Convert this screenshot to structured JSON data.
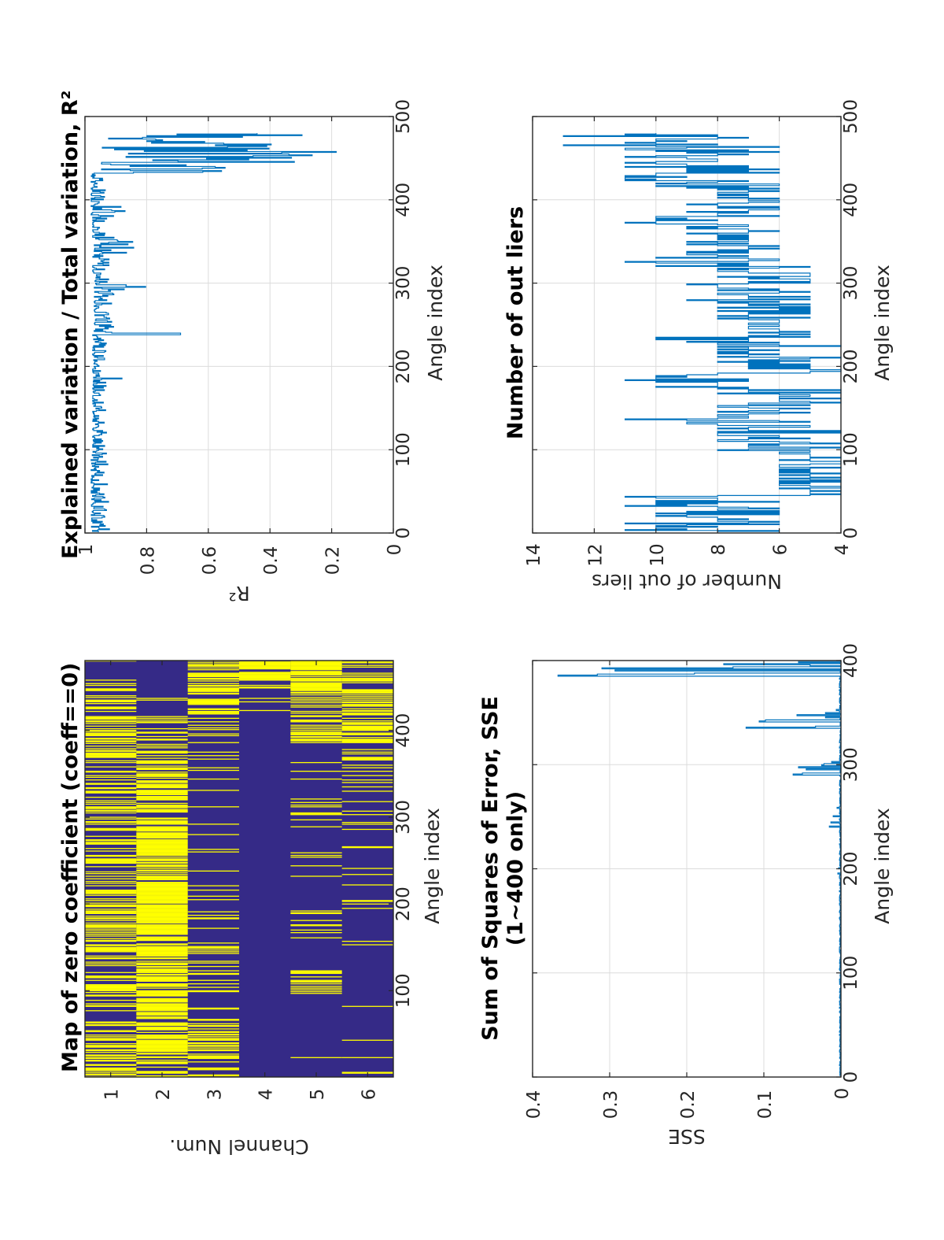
{
  "figure": {
    "orientation": "rotated-90-clockwise",
    "colors": {
      "line": "#0072bd",
      "heat_zero": "#ffff00",
      "heat_nonzero": "#352a87",
      "grid": "#dcdcdc",
      "axes": "#262626"
    }
  },
  "chart_data": [
    {
      "id": "zero-map",
      "type": "heatmap",
      "title": "Map of zero coefficient (coeff==0)",
      "xlabel": "Channel Num.",
      "ylabel": "Angle index",
      "xticks": [
        "1",
        "2",
        "3",
        "4",
        "5",
        "6"
      ],
      "yticks": [
        "100",
        "200",
        "300",
        "400"
      ],
      "ylim": [
        1,
        480
      ],
      "channels": [
        1,
        2,
        3,
        4,
        5,
        6
      ],
      "legend": "none",
      "value_colors": {
        "zero": "#ffff00",
        "nonzero": "#352a87"
      },
      "zero_density": [
        [
          0.42,
          0.55,
          0.3,
          0.5,
          0.45,
          0.4,
          0.35,
          0.3,
          0.45,
          0.4,
          0.3,
          0.55,
          0.6,
          0.45,
          0.1
        ],
        [
          0.55,
          0.85,
          0.7,
          0.8,
          0.75,
          0.85,
          0.9,
          0.8,
          0.85,
          0.7,
          0.75,
          0.55,
          0.35,
          0.05,
          0.0
        ],
        [
          0.55,
          0.6,
          0.15,
          0.3,
          0.35,
          0.15,
          0.1,
          0.05,
          0.15,
          0.1,
          0.08,
          0.1,
          0.25,
          0.7,
          0.7
        ],
        [
          0.0,
          0.0,
          0.0,
          0.0,
          0.0,
          0.0,
          0.0,
          0.0,
          0.0,
          0.0,
          0.0,
          0.0,
          0.0,
          0.05,
          0.7
        ],
        [
          0.03,
          0.0,
          0.0,
          0.45,
          0.03,
          0.18,
          0.0,
          0.12,
          0.08,
          0.22,
          0.08,
          0.15,
          0.55,
          0.45,
          0.92
        ],
        [
          0.1,
          0.05,
          0.03,
          0.0,
          0.06,
          0.0,
          0.12,
          0.08,
          0.1,
          0.1,
          0.15,
          0.25,
          0.5,
          0.6,
          0.45
        ]
      ]
    },
    {
      "id": "sse",
      "type": "line",
      "title": "Sum of Squares of Error, SSE",
      "subtitle": "(1~400 only)",
      "xlabel": "Angle index",
      "ylabel": "SSE",
      "xlim": [
        0,
        400
      ],
      "ylim": [
        0,
        0.4
      ],
      "xticks": [
        "0",
        "100",
        "200",
        "300",
        "400"
      ],
      "yticks": [
        "0",
        "0.1",
        "0.2",
        "0.3",
        "0.4"
      ],
      "grid": true,
      "series": [
        {
          "name": "SSE",
          "peaks": [
            {
              "x": 195,
              "y": 0.004
            },
            {
              "x": 200,
              "y": 0.003
            },
            {
              "x": 240,
              "y": 0.015
            },
            {
              "x": 244,
              "y": 0.013
            },
            {
              "x": 250,
              "y": 0.01
            },
            {
              "x": 258,
              "y": 0.005
            },
            {
              "x": 290,
              "y": 0.062
            },
            {
              "x": 291,
              "y": 0.05
            },
            {
              "x": 295,
              "y": 0.045
            },
            {
              "x": 297,
              "y": 0.055
            },
            {
              "x": 299,
              "y": 0.025
            },
            {
              "x": 300,
              "y": 0.022
            },
            {
              "x": 302,
              "y": 0.012
            },
            {
              "x": 335,
              "y": 0.123
            },
            {
              "x": 336,
              "y": 0.033
            },
            {
              "x": 341,
              "y": 0.106
            },
            {
              "x": 342,
              "y": 0.098
            },
            {
              "x": 345,
              "y": 0.02
            },
            {
              "x": 347,
              "y": 0.057
            },
            {
              "x": 349,
              "y": 0.02
            },
            {
              "x": 352,
              "y": 0.006
            },
            {
              "x": 385,
              "y": 0.367
            },
            {
              "x": 386,
              "y": 0.316
            },
            {
              "x": 387,
              "y": 0.19
            },
            {
              "x": 390,
              "y": 0.293
            },
            {
              "x": 392,
              "y": 0.31
            },
            {
              "x": 393,
              "y": 0.14
            },
            {
              "x": 395,
              "y": 0.04
            },
            {
              "x": 396,
              "y": 0.152
            },
            {
              "x": 398,
              "y": 0.055
            }
          ],
          "baseline": 0.001
        }
      ]
    },
    {
      "id": "r-squared",
      "type": "line",
      "title": "Explained variation / Total variation, R²",
      "xlabel": "Angle index",
      "ylabel": "R²",
      "xlim": [
        0,
        500
      ],
      "ylim": [
        0,
        1
      ],
      "xticks": [
        "0",
        "100",
        "200",
        "300",
        "400",
        "500"
      ],
      "yticks": [
        "0",
        "0.2",
        "0.4",
        "0.6",
        "0.8",
        "1"
      ],
      "grid": true,
      "series": [
        {
          "name": "R2",
          "segments": [
            {
              "from": 1,
              "to": 95,
              "min": 0.92,
              "max": 0.98
            },
            {
              "from": 95,
              "to": 185,
              "min": 0.93,
              "max": 0.975
            },
            {
              "from": 185,
              "to": 186,
              "min": 0.88,
              "max": 0.88
            },
            {
              "from": 186,
              "to": 238,
              "min": 0.93,
              "max": 0.975
            },
            {
              "from": 238,
              "to": 240,
              "min": 0.69,
              "max": 0.69
            },
            {
              "from": 240,
              "to": 285,
              "min": 0.9,
              "max": 0.97
            },
            {
              "from": 285,
              "to": 300,
              "min": 0.8,
              "max": 0.97
            },
            {
              "from": 300,
              "to": 335,
              "min": 0.92,
              "max": 0.975
            },
            {
              "from": 335,
              "to": 355,
              "min": 0.84,
              "max": 0.97
            },
            {
              "from": 355,
              "to": 380,
              "min": 0.92,
              "max": 0.975
            },
            {
              "from": 380,
              "to": 400,
              "min": 0.81,
              "max": 0.98
            },
            {
              "from": 400,
              "to": 432,
              "min": 0.93,
              "max": 0.98
            },
            {
              "from": 432,
              "to": 480,
              "min": 0.17,
              "max": 0.97
            }
          ]
        }
      ]
    },
    {
      "id": "outliers",
      "type": "line",
      "title": "Number of out liers",
      "xlabel": "Angle index",
      "ylabel": "Number of out liers",
      "xlim": [
        0,
        500
      ],
      "ylim": [
        4,
        14
      ],
      "xticks": [
        "0",
        "100",
        "200",
        "300",
        "400",
        "500"
      ],
      "yticks": [
        "4",
        "6",
        "8",
        "10",
        "12",
        "14"
      ],
      "grid": true,
      "series": [
        {
          "name": "outliers",
          "segments": [
            {
              "from": 1,
              "to": 45,
              "min": 6,
              "max": 11
            },
            {
              "from": 45,
              "to": 95,
              "min": 4,
              "max": 6
            },
            {
              "from": 95,
              "to": 130,
              "min": 4,
              "max": 8
            },
            {
              "from": 130,
              "to": 140,
              "min": 4,
              "max": 11
            },
            {
              "from": 140,
              "to": 175,
              "min": 4,
              "max": 8
            },
            {
              "from": 175,
              "to": 190,
              "min": 6,
              "max": 11
            },
            {
              "from": 190,
              "to": 225,
              "min": 4,
              "max": 8
            },
            {
              "from": 225,
              "to": 235,
              "min": 6,
              "max": 11
            },
            {
              "from": 235,
              "to": 275,
              "min": 5,
              "max": 8
            },
            {
              "from": 275,
              "to": 320,
              "min": 5,
              "max": 9
            },
            {
              "from": 320,
              "to": 335,
              "min": 6,
              "max": 11
            },
            {
              "from": 335,
              "to": 370,
              "min": 6,
              "max": 9
            },
            {
              "from": 370,
              "to": 380,
              "min": 7,
              "max": 11
            },
            {
              "from": 380,
              "to": 415,
              "min": 6,
              "max": 9
            },
            {
              "from": 415,
              "to": 465,
              "min": 6,
              "max": 11
            },
            {
              "from": 465,
              "to": 480,
              "min": 7,
              "max": 13
            }
          ]
        }
      ]
    }
  ]
}
